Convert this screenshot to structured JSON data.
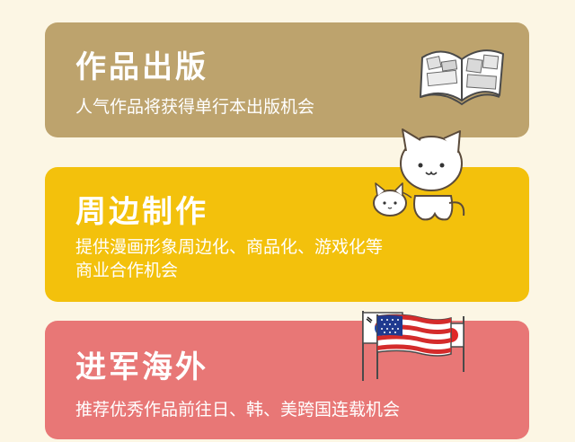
{
  "features": [
    {
      "title": "作品出版",
      "desc_lines": [
        "人气作品将获得单行本出版机会"
      ],
      "icon": "open-book-icon",
      "color": "#bda36d"
    },
    {
      "title": "周边制作",
      "desc_lines": [
        "提供漫画形象周边化、商品化、游戏化等",
        "商业合作机会"
      ],
      "icon": "cats-illustration",
      "color": "#f3c10c"
    },
    {
      "title": "进军海外",
      "desc_lines": [
        "推荐优秀作品前往日、韩、美跨国连载机会"
      ],
      "icon": "flags-illustration",
      "color": "#e87776"
    }
  ]
}
